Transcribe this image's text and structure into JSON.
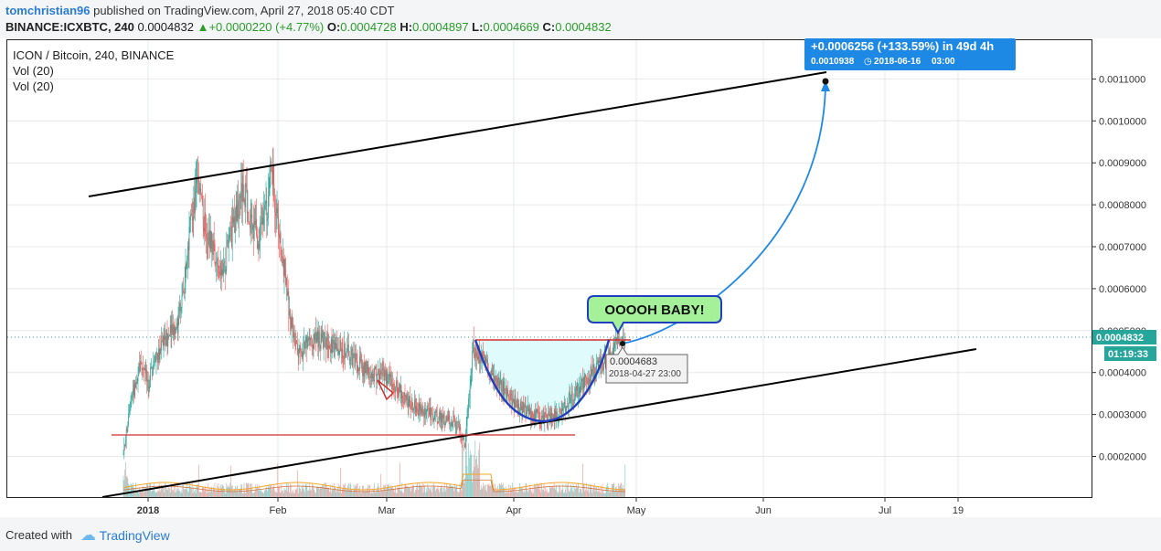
{
  "header": {
    "author": "tomchristian96",
    "published": " published on TradingView.com, April 27, 2018 05:40 CDT",
    "symbol_line": "BINANCE:ICXBTC, 240",
    "last": "0.0004832",
    "change": "+0.0000220 (+4.77%)",
    "o_label": "O:",
    "o_value": "0.0004728",
    "h_label": "H:",
    "h_value": "0.0004897",
    "l_label": "L:",
    "l_value": "0.0004669",
    "c_label": "C:",
    "c_value": "0.0004832"
  },
  "legend": {
    "title": "ICON / Bitcoin, 240, BINANCE",
    "vol1": "Vol (20)",
    "vol2": "Vol (20)"
  },
  "footer": {
    "created": "Created with",
    "brand": "TradingView"
  },
  "chart_data": {
    "type": "candlestick",
    "y_ticks": [
      "0.0002000",
      "0.0003000",
      "0.0004000",
      "0.0005000",
      "0.0006000",
      "0.0007000",
      "0.0008000",
      "0.0009000",
      "0.0010000",
      "0.0011000"
    ],
    "x_ticks": [
      "2018",
      "Feb",
      "Mar",
      "Apr",
      "May",
      "Jun",
      "Jul",
      "19"
    ],
    "last_price_label": "0.0004832",
    "countdown_label": "01:19:33",
    "price_series": [
      [
        "2017-12-26",
        0.000205
      ],
      [
        "2017-12-28",
        0.00034
      ],
      [
        "2017-12-30",
        0.00042
      ],
      [
        "2018-01-01",
        0.00038
      ],
      [
        "2018-01-03",
        0.00043
      ],
      [
        "2018-01-05",
        0.00048
      ],
      [
        "2018-01-08",
        0.0005
      ],
      [
        "2018-01-10",
        0.00063
      ],
      [
        "2018-01-12",
        0.0008
      ],
      [
        "2018-01-13",
        0.00086
      ],
      [
        "2018-01-15",
        0.00074
      ],
      [
        "2018-01-17",
        0.00069
      ],
      [
        "2018-01-19",
        0.00064
      ],
      [
        "2018-01-22",
        0.00076
      ],
      [
        "2018-01-24",
        0.00085
      ],
      [
        "2018-01-26",
        0.00075
      ],
      [
        "2018-01-28",
        0.00072
      ],
      [
        "2018-01-30",
        0.0008
      ],
      [
        "2018-01-31",
        0.0009
      ],
      [
        "2018-02-01",
        0.00078
      ],
      [
        "2018-02-03",
        0.00065
      ],
      [
        "2018-02-05",
        0.0005
      ],
      [
        "2018-02-07",
        0.00044
      ],
      [
        "2018-02-09",
        0.00048
      ],
      [
        "2018-02-12",
        0.00048
      ],
      [
        "2018-02-15",
        0.00046
      ],
      [
        "2018-02-18",
        0.00045
      ],
      [
        "2018-02-21",
        0.00042
      ],
      [
        "2018-02-24",
        0.0004
      ],
      [
        "2018-02-27",
        0.00039
      ],
      [
        "2018-03-02",
        0.00037
      ],
      [
        "2018-03-05",
        0.00033
      ],
      [
        "2018-03-08",
        0.00031
      ],
      [
        "2018-03-11",
        0.0003
      ],
      [
        "2018-03-14",
        0.00029
      ],
      [
        "2018-03-17",
        0.00028
      ],
      [
        "2018-03-19",
        0.00023
      ],
      [
        "2018-03-20",
        0.00033
      ],
      [
        "2018-03-21",
        0.00046
      ],
      [
        "2018-03-23",
        0.00044
      ],
      [
        "2018-03-25",
        0.0004
      ],
      [
        "2018-03-28",
        0.00037
      ],
      [
        "2018-03-31",
        0.00033
      ],
      [
        "2018-04-04",
        0.0003
      ],
      [
        "2018-04-08",
        0.00029
      ],
      [
        "2018-04-11",
        0.0003
      ],
      [
        "2018-04-14",
        0.00034
      ],
      [
        "2018-04-17",
        0.00038
      ],
      [
        "2018-04-20",
        0.00041
      ],
      [
        "2018-04-23",
        0.00044
      ],
      [
        "2018-04-25",
        0.00047
      ],
      [
        "2018-04-27",
        0.000483
      ]
    ],
    "annotations": [
      {
        "type": "label",
        "text": "OOOOH BABY!"
      },
      {
        "type": "price-label",
        "price": "0.0004683",
        "time": "2018-04-27 23:00"
      },
      {
        "type": "projection",
        "change": "+0.0006256 (+133.59%) in 49d 4h",
        "target": "0.0010938",
        "target_time": "2018-06-16",
        "target_hour": "03:00"
      },
      {
        "type": "trendline",
        "role": "upper channel",
        "color": "#000000"
      },
      {
        "type": "trendline",
        "role": "lower channel",
        "color": "#000000"
      },
      {
        "type": "horizontal",
        "role": "support",
        "color": "#d32f2f",
        "price": 0.00025
      },
      {
        "type": "horizontal",
        "role": "cup rim",
        "color": "#d32f2f",
        "price": 0.000483
      },
      {
        "type": "arc",
        "role": "cup",
        "color": "#1f3fbf",
        "fill": "#e0fbfb"
      }
    ],
    "colors": {
      "up": "#26a69a",
      "down": "#ef5350",
      "accent": "#1e88e5",
      "last_price": "#26a69a"
    }
  }
}
